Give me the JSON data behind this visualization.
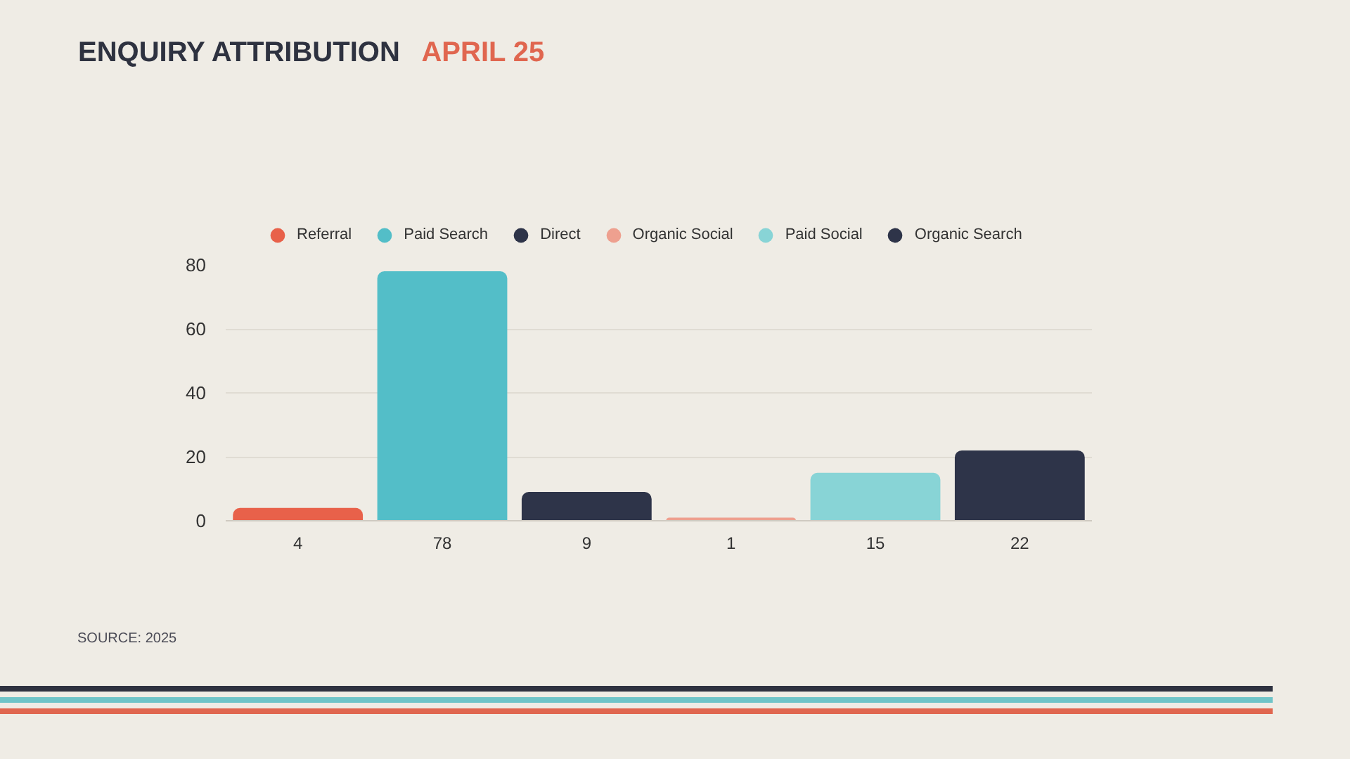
{
  "chart_data": {
    "type": "bar",
    "title": "ENQUIRY ATTRIBUTION",
    "subtitle": "APRIL 25",
    "categories": [
      "4",
      "78",
      "9",
      "1",
      "15",
      "22"
    ],
    "series": [
      {
        "name": "Referral",
        "color": "#e8614a",
        "values": [
          4,
          null,
          null,
          null,
          null,
          null
        ]
      },
      {
        "name": "Paid Search",
        "color": "#53bec8",
        "values": [
          null,
          78,
          null,
          null,
          null,
          null
        ]
      },
      {
        "name": "Direct",
        "color": "#2e3449",
        "values": [
          null,
          null,
          9,
          null,
          null,
          null
        ]
      },
      {
        "name": "Organic Social",
        "color": "#eea08f",
        "values": [
          null,
          null,
          null,
          1,
          null,
          null
        ]
      },
      {
        "name": "Paid Social",
        "color": "#88d4d6",
        "values": [
          null,
          null,
          null,
          null,
          15,
          null
        ]
      },
      {
        "name": "Organic Search",
        "color": "#2e3449",
        "values": [
          null,
          null,
          null,
          null,
          null,
          22
        ]
      }
    ],
    "ylim": [
      0,
      80
    ],
    "yticks": [
      0,
      20,
      40,
      60,
      80
    ],
    "grid": "y",
    "legend": "top",
    "annotations": [
      "SOURCE: 2025"
    ]
  }
}
